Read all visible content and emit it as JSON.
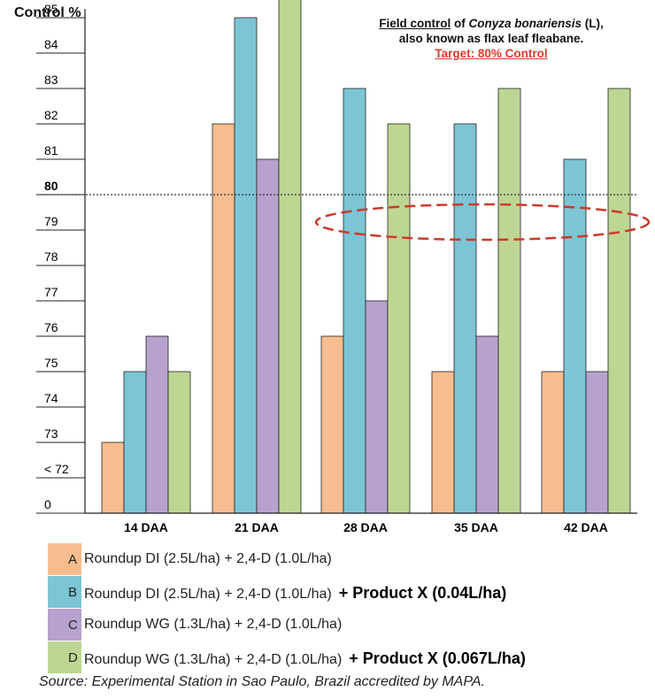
{
  "chart_data": {
    "type": "bar",
    "ylabel": "Control %",
    "y_tick_labels": [
      "0",
      "< 72",
      "73",
      "74",
      "75",
      "76",
      "77",
      "78",
      "79",
      "80",
      "81",
      "82",
      "83",
      "84",
      "85"
    ],
    "categories": [
      "14 DAA",
      "21 DAA",
      "28 DAA",
      "35 DAA",
      "42 DAA"
    ],
    "series": [
      {
        "name": "A",
        "color": "#f7bd8e",
        "values": [
          73,
          82,
          76,
          75,
          75
        ]
      },
      {
        "name": "B",
        "color": "#7cc5d5",
        "values": [
          75,
          85,
          83,
          82,
          81
        ]
      },
      {
        "name": "C",
        "color": "#b6a2cd",
        "values": [
          76,
          81,
          77,
          76,
          75
        ]
      },
      {
        "name": "D",
        "color": "#bed694",
        "values": [
          75,
          86,
          82,
          83,
          83
        ]
      }
    ],
    "reference_line": 80,
    "grid": false
  },
  "note": {
    "line1_underlined": "Field control",
    "line1_mid": " of ",
    "line1_species": "Conyza bonariensis",
    "line1_end": " (L),",
    "line2": "also known as flax leaf fleabane.",
    "target": "Target: 80% Control",
    "highlight_color": "#cc3a2a"
  },
  "legend": [
    {
      "letter": "A",
      "text": "Roundup DI (2.5L/ha) + 2,4-D (1.0L/ha)",
      "extra": ""
    },
    {
      "letter": "B",
      "text": "Roundup DI (2.5L/ha) + 2,4-D (1.0L/ha)",
      "extra": "+ Product X (0.04L/ha)"
    },
    {
      "letter": "C",
      "text": "Roundup WG (1.3L/ha) + 2,4-D (1.0L/ha)",
      "extra": ""
    },
    {
      "letter": "D",
      "text": "Roundup WG (1.3L/ha) + 2,4-D (1.0L/ha)",
      "extra": "+ Product X (0.067L/ha)"
    }
  ],
  "source": "Source: Experimental Station in Sao Paulo, Brazil accredited by MAPA."
}
